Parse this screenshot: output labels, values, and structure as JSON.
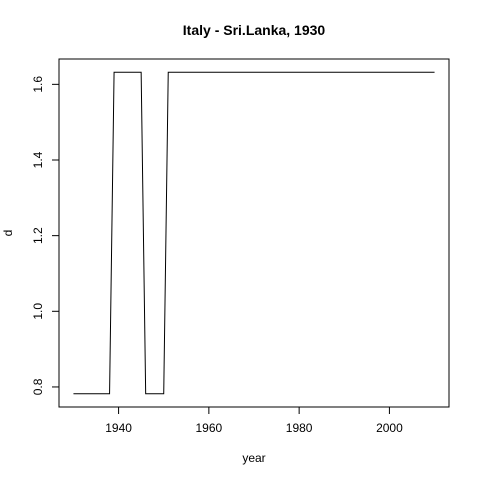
{
  "chart_data": {
    "type": "line",
    "title": "Italy - Sri.Lanka, 1930",
    "xlabel": "year",
    "ylabel": "d",
    "xlim": [
      1926.8,
      2013.2
    ],
    "ylim": [
      0.747,
      1.667
    ],
    "xticks": [
      1940,
      1960,
      1980,
      2000
    ],
    "yticks": [
      0.8,
      1.0,
      1.2,
      1.4,
      1.6
    ],
    "xtick_labels": [
      "1940",
      "1960",
      "1980",
      "2000"
    ],
    "ytick_labels": [
      "0.8",
      "1.0",
      "1.2",
      "1.4",
      "1.6"
    ],
    "grid": false,
    "series": [
      {
        "color": "#000000",
        "points": [
          [
            1930,
            0.782
          ],
          [
            1938,
            0.782
          ],
          [
            1939,
            1.632
          ],
          [
            1945,
            1.632
          ],
          [
            1946,
            0.782
          ],
          [
            1950,
            0.782
          ],
          [
            1951,
            1.632
          ],
          [
            2010,
            1.632
          ]
        ]
      }
    ]
  }
}
